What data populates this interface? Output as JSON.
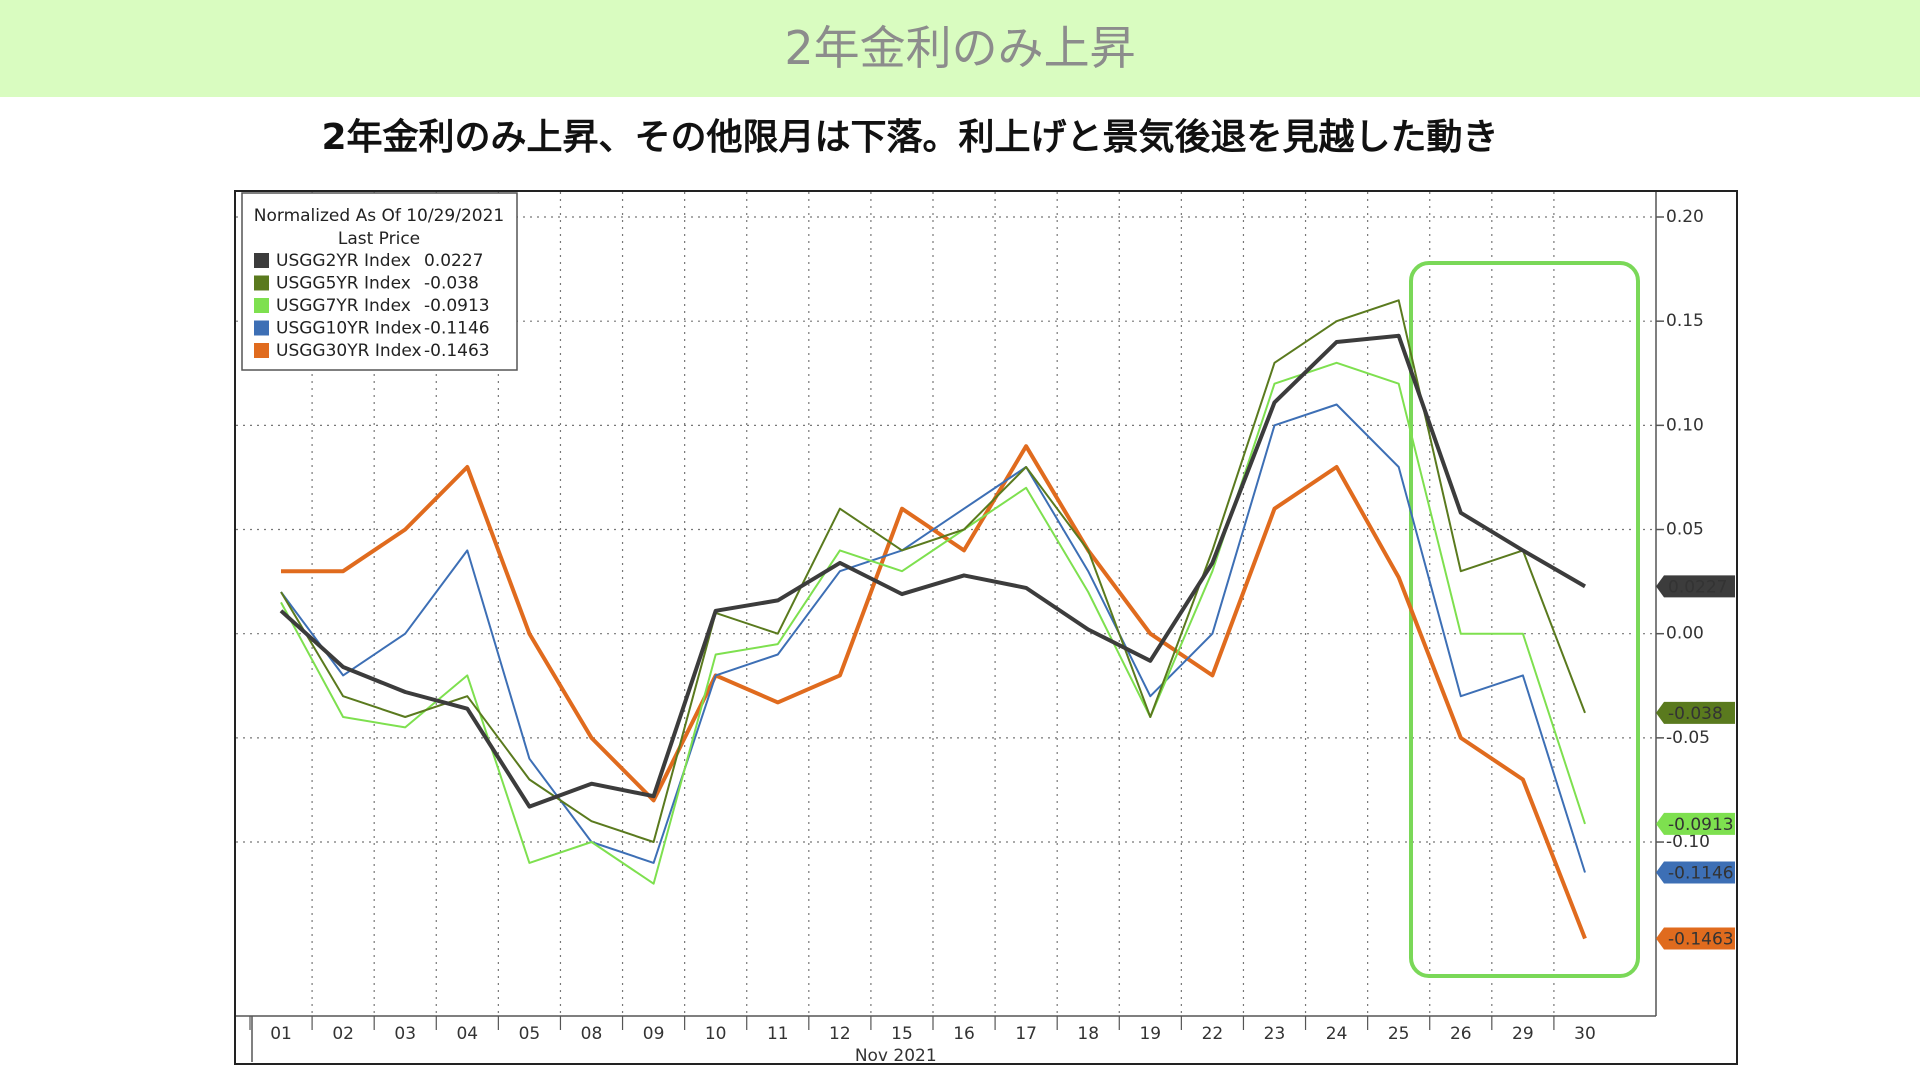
{
  "header": {
    "title": "2年金利のみ上昇",
    "subtitle": "2年金利のみ上昇、その他限月は下落。利上げと景気後退を見越した動き"
  },
  "chart_data": {
    "type": "line",
    "legend_title": "Normalized As Of 10/29/2021",
    "legend_subtitle": "Last Price",
    "x_label": "Nov 2021",
    "categories": [
      "01",
      "02",
      "03",
      "04",
      "05",
      "08",
      "09",
      "10",
      "11",
      "12",
      "15",
      "16",
      "17",
      "18",
      "19",
      "22",
      "23",
      "24",
      "25",
      "26",
      "29",
      "30"
    ],
    "series": [
      {
        "name": "USGG2YR Index",
        "color": "#3c3c3c",
        "values": [
          0.011,
          -0.016,
          -0.028,
          -0.036,
          -0.083,
          -0.072,
          -0.078,
          0.011,
          0.016,
          0.034,
          0.019,
          0.028,
          0.022,
          0.002,
          -0.013,
          0.034,
          0.111,
          0.14,
          0.143,
          0.058,
          0.04,
          0.0227
        ]
      },
      {
        "name": "USGG5YR Index",
        "color": "#5a7a1e",
        "values": [
          0.02,
          -0.03,
          -0.04,
          -0.03,
          -0.07,
          -0.09,
          -0.1,
          0.01,
          0.0,
          0.06,
          0.04,
          0.05,
          0.08,
          0.04,
          -0.04,
          0.04,
          0.13,
          0.15,
          0.16,
          0.03,
          0.04,
          -0.038
        ]
      },
      {
        "name": "USGG7YR Index",
        "color": "#7ee04f",
        "values": [
          0.015,
          -0.04,
          -0.045,
          -0.02,
          -0.11,
          -0.1,
          -0.12,
          -0.01,
          -0.005,
          0.04,
          0.03,
          0.05,
          0.07,
          0.02,
          -0.04,
          0.03,
          0.12,
          0.13,
          0.12,
          0.0,
          0.0,
          -0.0913
        ]
      },
      {
        "name": "USGG10YR Index",
        "color": "#3d6fb5",
        "values": [
          0.02,
          -0.02,
          0.0,
          0.04,
          -0.06,
          -0.1,
          -0.11,
          -0.02,
          -0.01,
          0.03,
          0.04,
          0.06,
          0.08,
          0.03,
          -0.03,
          0.0,
          0.1,
          0.11,
          0.08,
          -0.03,
          -0.02,
          -0.1146
        ]
      },
      {
        "name": "USGG30YR Index",
        "color": "#e06b1e",
        "values": [
          0.03,
          0.03,
          0.05,
          0.08,
          0.0,
          -0.05,
          -0.08,
          -0.02,
          -0.033,
          -0.02,
          0.06,
          0.04,
          0.09,
          0.04,
          0.0,
          -0.02,
          0.06,
          0.08,
          0.027,
          -0.05,
          -0.07,
          -0.1463
        ]
      }
    ],
    "tag_text_colors": [
      "#ffffff",
      "#ffffff",
      "#1a3a10",
      "#ffffff",
      "#1a1a1a"
    ],
    "ylim": [
      -0.1835,
      0.212
    ],
    "yticks": [
      {
        "value": 0.2,
        "label": "0.20"
      },
      {
        "value": 0.15,
        "label": "0.15"
      },
      {
        "value": 0.1,
        "label": "0.10"
      },
      {
        "value": 0.05,
        "label": "0.05"
      },
      {
        "value": 0,
        "label": "0.00"
      },
      {
        "value": -0.05,
        "label": "-0.05"
      },
      {
        "value": -0.1,
        "label": "-0.10"
      }
    ],
    "grid": true
  }
}
